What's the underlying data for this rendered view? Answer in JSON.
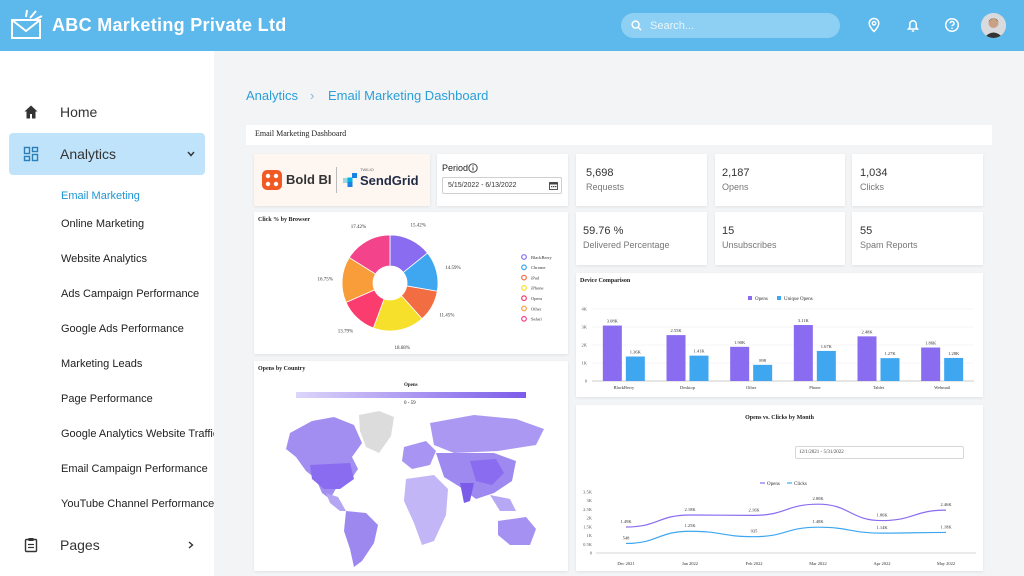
{
  "header": {
    "app_title": "ABC Marketing Private Ltd",
    "search_placeholder": "Search..."
  },
  "sidebar": {
    "items": [
      {
        "label": "Home"
      },
      {
        "label": "Analytics"
      },
      {
        "label": "Pages"
      }
    ],
    "sub_items": [
      "Email Marketing",
      "Online Marketing",
      "Website Analytics",
      "Ads Campaign Performance",
      "Google Ads Performance",
      "Marketing Leads",
      "Page Performance",
      "Google Analytics Website Traffic",
      "Email Campaign Performance",
      "YouTube Channel Performance"
    ]
  },
  "breadcrumb": {
    "root": "Analytics",
    "separator": "›",
    "current": "Email Marketing Dashboard"
  },
  "dashboard": {
    "title": "Email Marketing Dashboard",
    "logos": {
      "boldbi": "Bold BI",
      "twilio": "TWILIO",
      "sendgrid": "SendGrid"
    },
    "period": {
      "label": "Period",
      "value": "5/15/2022 - 6/13/2022"
    },
    "kpis": [
      {
        "value": "5,698",
        "label": "Requests"
      },
      {
        "value": "2,187",
        "label": "Opens"
      },
      {
        "value": "1,034",
        "label": "Clicks"
      },
      {
        "value": "59.76 %",
        "label": "Delivered Percentage"
      },
      {
        "value": "15",
        "label": "Unsubscribes"
      },
      {
        "value": "55",
        "label": "Spam Reports"
      }
    ],
    "colors": {
      "accent": "#2a9fd8",
      "header": "#5db8ec",
      "purple": "#8a6cf0",
      "blue": "#3fa7f0"
    }
  },
  "chart_data": [
    {
      "type": "pie",
      "title": "Click % by Browser",
      "categories": [
        "BlackBerry",
        "Chrome",
        "iPad",
        "iPhone",
        "Opera",
        "Other",
        "Safari"
      ],
      "values": [
        15.42,
        14.59,
        11.45,
        18.68,
        13.79,
        16.75,
        17.42
      ],
      "labels": [
        "15.42%",
        "14.59%",
        "11.45%",
        "18.68%",
        "13.79%",
        "16.75%",
        "17.42%"
      ],
      "colors": [
        "#8a6cf0",
        "#3fa7f0",
        "#f36d43",
        "#f7e02b",
        "#fb3c6f",
        "#f99c3a",
        "#f3438a"
      ],
      "legend": "right"
    },
    {
      "type": "bar",
      "title": "Device Comparison",
      "categories": [
        "BlackBerry",
        "Desktop",
        "Other",
        "Phone",
        "Tablet",
        "Webmail"
      ],
      "series": [
        {
          "name": "Opens",
          "values": [
            3.08,
            2.55,
            1.9,
            3.11,
            2.48,
            1.86
          ],
          "labels": [
            "3.08K",
            "2.55K",
            "1.90K",
            "3.11K",
            "2.48K",
            "1.86K"
          ],
          "color": "#8a6cf0"
        },
        {
          "name": "Unique Opens",
          "values": [
            1.36,
            1.41,
            0.898,
            1.67,
            1.27,
            1.28
          ],
          "labels": [
            "1.36K",
            "1.41K",
            "898",
            "1.67K",
            "1.27K",
            "1.28K"
          ],
          "color": "#3fa7f0"
        }
      ],
      "yticks": [
        "0",
        "1K",
        "2K",
        "3K",
        "4K"
      ],
      "ylim": [
        0,
        4
      ],
      "legend": "top"
    },
    {
      "type": "line",
      "title": "Opens vs. Clicks by Month",
      "range_label": "12/1/2021 - 5/31/2022",
      "categories": [
        "Dec 2021",
        "Jan 2022",
        "Feb 2022",
        "Mar 2022",
        "Apr 2022",
        "May 2022"
      ],
      "series": [
        {
          "name": "Opens",
          "values": [
            1.49,
            2.18,
            2.16,
            2.8,
            1.86,
            2.46
          ],
          "labels": [
            "1.49K",
            "2.18K",
            "2.16K",
            "2.80K",
            "1.86K",
            "2.46K"
          ],
          "color": "#8a6cf0"
        },
        {
          "name": "Clicks",
          "values": [
            0.548,
            1.25,
            0.935,
            1.48,
            1.14,
            1.18
          ],
          "labels": [
            "548",
            "1.25K",
            "935",
            "1.48K",
            "1.14K",
            "1.18K"
          ],
          "color": "#3fa7f0"
        }
      ],
      "yticks": [
        "0",
        "0.5K",
        "1K",
        "1.5K",
        "2K",
        "2.5K",
        "3K",
        "3.5K"
      ],
      "ylim": [
        0,
        3.5
      ],
      "legend": "top"
    }
  ],
  "map": {
    "title": "Opens by Country",
    "legend_title": "Opens",
    "legend_range": "0 - 59"
  }
}
